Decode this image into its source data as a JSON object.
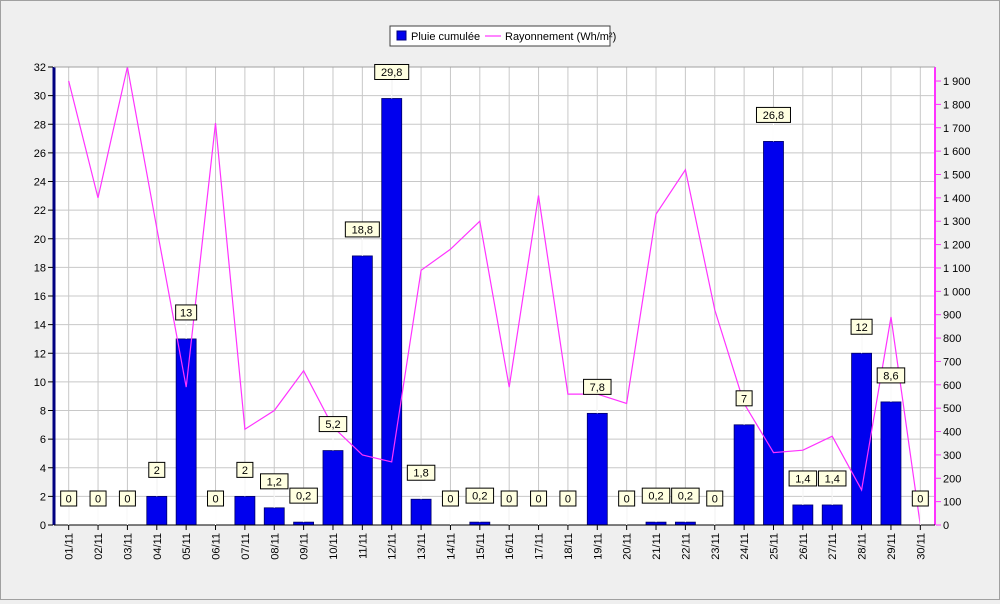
{
  "chart_data": {
    "type": "bar+line",
    "title": "",
    "legend": {
      "placement": "top-center",
      "entries": [
        "Pluie cumulée",
        "Rayonnement (Wh/m²)"
      ]
    },
    "categories": [
      "01/11",
      "02/11",
      "03/11",
      "04/11",
      "05/11",
      "06/11",
      "07/11",
      "08/11",
      "09/11",
      "10/11",
      "11/11",
      "12/11",
      "13/11",
      "14/11",
      "15/11",
      "16/11",
      "17/11",
      "18/11",
      "19/11",
      "20/11",
      "21/11",
      "22/11",
      "23/11",
      "24/11",
      "25/11",
      "26/11",
      "27/11",
      "28/11",
      "29/11",
      "30/11"
    ],
    "series": [
      {
        "name": "Pluie cumulée",
        "type": "bar",
        "axis": "left",
        "color": "#0000ee",
        "values": [
          0,
          0,
          0,
          2,
          13,
          0,
          2,
          1.2,
          0.2,
          5.2,
          18.8,
          29.8,
          1.8,
          0,
          0.2,
          0,
          0,
          0,
          7.8,
          0,
          0.2,
          0.2,
          0,
          7,
          26.8,
          1.4,
          1.4,
          12,
          8.6,
          0
        ],
        "data_labels": [
          "0",
          "0",
          "0",
          "2",
          "13",
          "0",
          "2",
          "1,2",
          "0,2",
          "5,2",
          "18,8",
          "29,8",
          "1,8",
          "0",
          "0,2",
          "0",
          "0",
          "0",
          "7,8",
          "0",
          "0,2",
          "0,2",
          "0",
          "7",
          "26,8",
          "1,4",
          "1,4",
          "12",
          "8,6",
          "0"
        ]
      },
      {
        "name": "Rayonnement (Wh/m²)",
        "type": "line",
        "axis": "right",
        "color": "#ff33ff",
        "values": [
          1900,
          1400,
          1960,
          1270,
          590,
          1720,
          410,
          490,
          660,
          420,
          300,
          270,
          1090,
          1180,
          1300,
          590,
          1410,
          560,
          560,
          520,
          1330,
          1520,
          920,
          520,
          310,
          320,
          380,
          150,
          890,
          0
        ]
      }
    ],
    "y_left": {
      "min": 0,
      "max": 32,
      "ticks": [
        0,
        2,
        4,
        6,
        8,
        10,
        12,
        14,
        16,
        18,
        20,
        22,
        24,
        26,
        28,
        30,
        32
      ],
      "tick_labels": [
        "0",
        "2",
        "4",
        "6",
        "8",
        "10",
        "12",
        "14",
        "16",
        "18",
        "20",
        "22",
        "24",
        "26",
        "28",
        "30",
        "32"
      ]
    },
    "y_right": {
      "min": 0,
      "max": 1960,
      "ticks": [
        0,
        100,
        200,
        300,
        400,
        500,
        600,
        700,
        800,
        900,
        1000,
        1100,
        1200,
        1300,
        1400,
        1500,
        1600,
        1700,
        1800,
        1900
      ],
      "tick_labels": [
        "0",
        "100",
        "200",
        "300",
        "400",
        "500",
        "600",
        "700",
        "800",
        "900",
        "1 000",
        "1 100",
        "1 200",
        "1 300",
        "1 400",
        "1 500",
        "1 600",
        "1 700",
        "1 800",
        "1 900"
      ],
      "color": "#ff33ff"
    },
    "grid": true
  }
}
